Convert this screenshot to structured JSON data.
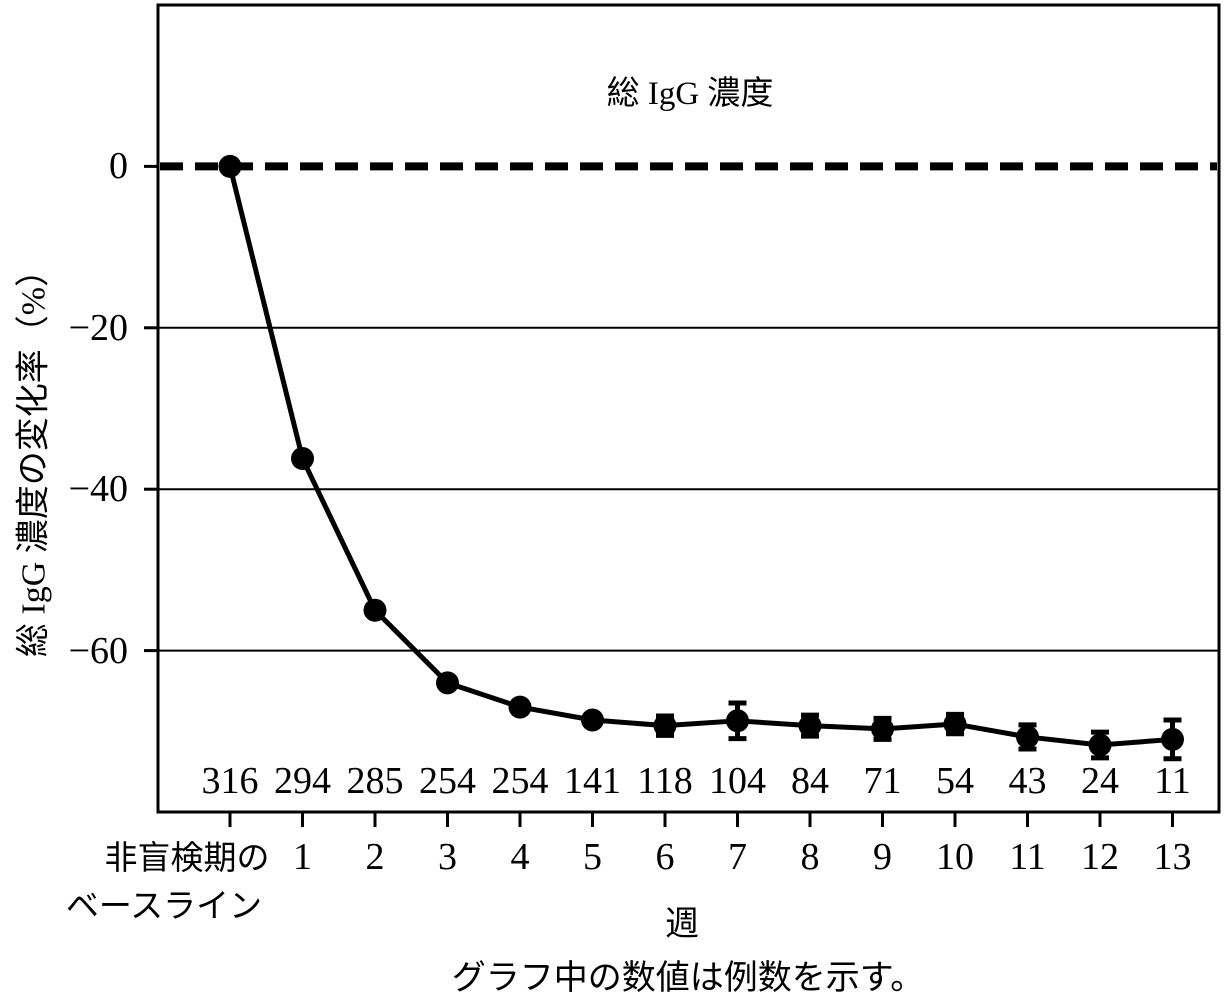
{
  "figure": {
    "title": "総 IgG 濃度",
    "y_axis_label": "総 IgG 濃度の変化率（%）",
    "x_axis_label": "週",
    "caption": "グラフ中の数値は例数を示す。",
    "baseline_label_line1": "非盲検期の",
    "baseline_label_line2": "ベースライン"
  },
  "chart_data": {
    "type": "line",
    "title": "総 IgG 濃度",
    "xlabel": "週",
    "ylabel": "総 IgG 濃度の変化率（%）",
    "categories": [
      "非盲検期のベースライン",
      "1",
      "2",
      "3",
      "4",
      "5",
      "6",
      "7",
      "8",
      "9",
      "10",
      "11",
      "12",
      "13"
    ],
    "series": [
      {
        "name": "総 IgG 濃度の変化率",
        "values": [
          0,
          -36.2,
          -55,
          -64,
          -67,
          -68.6,
          -69.3,
          -68.7,
          -69.3,
          -69.7,
          -69.1,
          -70.7,
          -71.7,
          -71.0
        ],
        "errors": [
          0,
          0,
          0,
          0,
          0,
          0,
          1.2,
          2.2,
          1.3,
          1.3,
          1.2,
          1.5,
          1.6,
          2.4
        ]
      }
    ],
    "n_counts": [
      316,
      294,
      285,
      254,
      254,
      141,
      118,
      104,
      84,
      71,
      54,
      43,
      24,
      11
    ],
    "n_counts_note": "グラフ中の数値は例数を示す。",
    "ylim": [
      -80,
      20
    ],
    "yticks": [
      {
        "value": 0,
        "label": "0"
      },
      {
        "value": -20,
        "label": "−20"
      },
      {
        "value": -40,
        "label": "−40"
      },
      {
        "value": -60,
        "label": "−60"
      }
    ],
    "gridlines": [
      -20,
      -40,
      -60
    ],
    "reference_line": 0,
    "reference_line_style": "dashed",
    "grid": "horizontal-only",
    "legend": "none",
    "marker": "filled-circle",
    "line_color": "#000000",
    "background_color": "#ffffff"
  }
}
